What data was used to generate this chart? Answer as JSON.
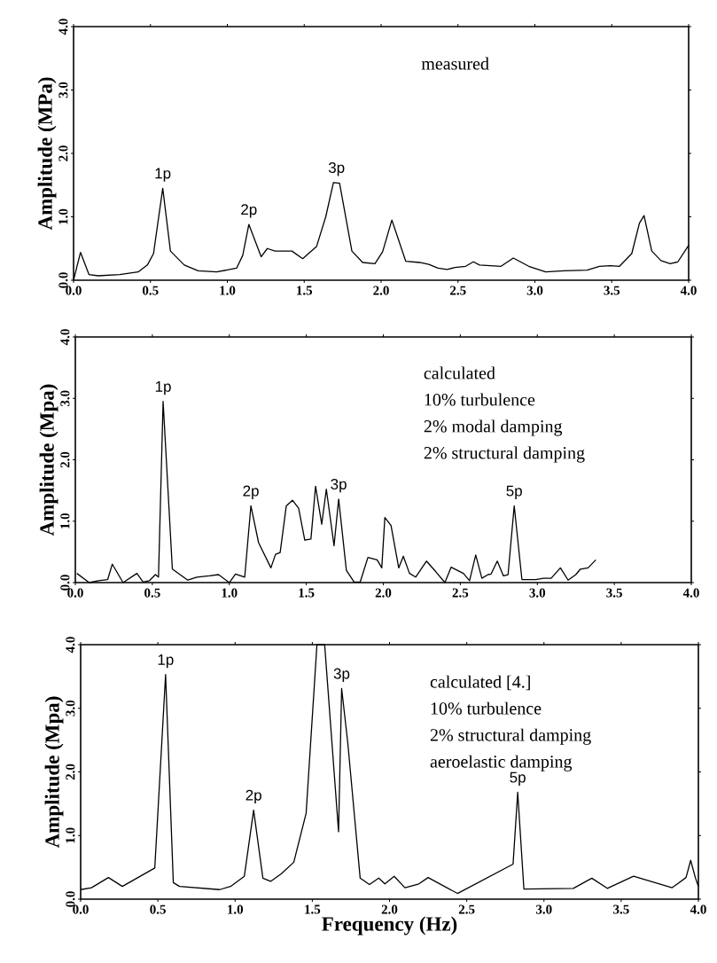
{
  "chart_data": [
    {
      "type": "line",
      "ylabel": "Amplitude (MPa)",
      "color": "#000000",
      "marker": "none",
      "xlim": [
        0,
        4
      ],
      "ylim": [
        0,
        4
      ],
      "xticks": [
        {
          "value": 0,
          "label": "0.0"
        },
        {
          "value": 0.5,
          "label": "0.5"
        },
        {
          "value": 1,
          "label": "1.0"
        },
        {
          "value": 1.5,
          "label": "1.5"
        },
        {
          "value": 2,
          "label": "2.0"
        },
        {
          "value": 2.5,
          "label": "2.5"
        },
        {
          "value": 3,
          "label": "3.0"
        },
        {
          "value": 3.5,
          "label": "3.5"
        },
        {
          "value": 4,
          "label": "4.0"
        }
      ],
      "yticks": [
        {
          "value": 0,
          "label": "0.0"
        },
        {
          "value": 1,
          "label": "1.0"
        },
        {
          "value": 2,
          "label": "2.0"
        },
        {
          "value": 3,
          "label": "3.0"
        },
        {
          "value": 4,
          "label": "4.0"
        }
      ],
      "x": [
        0,
        0.045,
        0.1,
        0.16,
        0.3,
        0.42,
        0.48,
        0.52,
        0.58,
        0.63,
        0.72,
        0.81,
        0.93,
        1.06,
        1.1,
        1.14,
        1.22,
        1.26,
        1.31,
        1.42,
        1.49,
        1.58,
        1.64,
        1.69,
        1.73,
        1.81,
        1.88,
        1.96,
        2.01,
        2.07,
        2.16,
        2.25,
        2.31,
        2.37,
        2.43,
        2.48,
        2.55,
        2.6,
        2.64,
        2.78,
        2.86,
        2.96,
        3.07,
        3.19,
        3.34,
        3.42,
        3.49,
        3.55,
        3.63,
        3.68,
        3.71,
        3.76,
        3.82,
        3.88,
        3.93,
        4.0
      ],
      "values": [
        0,
        0.44,
        0.09,
        0.07,
        0.09,
        0.13,
        0.24,
        0.42,
        1.45,
        0.46,
        0.24,
        0.15,
        0.13,
        0.19,
        0.39,
        0.88,
        0.37,
        0.5,
        0.46,
        0.46,
        0.34,
        0.53,
        1.0,
        1.54,
        1.53,
        0.46,
        0.28,
        0.26,
        0.45,
        0.95,
        0.3,
        0.28,
        0.25,
        0.19,
        0.17,
        0.2,
        0.22,
        0.29,
        0.24,
        0.22,
        0.35,
        0.22,
        0.13,
        0.15,
        0.16,
        0.22,
        0.23,
        0.22,
        0.42,
        0.9,
        1.02,
        0.46,
        0.31,
        0.26,
        0.29,
        0.55
      ],
      "annotations": [
        {
          "text": "1p",
          "x": 0.58,
          "y": 1.45
        },
        {
          "text": "2p",
          "x": 1.14,
          "y": 0.88
        },
        {
          "text": "3p",
          "x": 1.71,
          "y": 1.54
        },
        "measured"
      ]
    },
    {
      "type": "line",
      "ylabel": "Amplitude (Mpa)",
      "color": "#000000",
      "marker": "none",
      "xlim": [
        0,
        4
      ],
      "ylim": [
        0,
        4
      ],
      "xticks": [
        {
          "value": 0,
          "label": "0.0"
        },
        {
          "value": 0.5,
          "label": "0.5"
        },
        {
          "value": 1,
          "label": "1.0"
        },
        {
          "value": 1.5,
          "label": "1.5"
        },
        {
          "value": 2,
          "label": "2.0"
        },
        {
          "value": 2.5,
          "label": "2.5"
        },
        {
          "value": 3,
          "label": "3.0"
        },
        {
          "value": 3.5,
          "label": "3.5"
        },
        {
          "value": 4,
          "label": "4.0"
        }
      ],
      "yticks": [
        {
          "value": 0,
          "label": "0.0"
        },
        {
          "value": 1,
          "label": "1.0"
        },
        {
          "value": 2,
          "label": "2.0"
        },
        {
          "value": 3,
          "label": "3.0"
        },
        {
          "value": 4,
          "label": "4.0"
        }
      ],
      "x": [
        0.01,
        0.09,
        0.15,
        0.21,
        0.24,
        0.31,
        0.4,
        0.44,
        0.48,
        0.52,
        0.54,
        0.57,
        0.63,
        0.73,
        0.79,
        0.87,
        0.93,
        1.0,
        1.04,
        1.1,
        1.14,
        1.19,
        1.27,
        1.3,
        1.33,
        1.37,
        1.41,
        1.45,
        1.49,
        1.53,
        1.56,
        1.6,
        1.63,
        1.68,
        1.71,
        1.76,
        1.81,
        1.85,
        1.9,
        1.96,
        1.99,
        2.01,
        2.05,
        2.1,
        2.13,
        2.17,
        2.21,
        2.28,
        2.34,
        2.4,
        2.44,
        2.52,
        2.56,
        2.6,
        2.64,
        2.68,
        2.7,
        2.74,
        2.78,
        2.81,
        2.85,
        2.9,
        2.99,
        3.04,
        3.09,
        3.15,
        3.2,
        3.25,
        3.28,
        3.33,
        3.38
      ],
      "values": [
        0.15,
        0,
        0.03,
        0.05,
        0.3,
        0,
        0.15,
        0.01,
        0.03,
        0.13,
        0.09,
        2.95,
        0.22,
        0.04,
        0.09,
        0.11,
        0.13,
        0,
        0.14,
        0.09,
        1.25,
        0.65,
        0.24,
        0.46,
        0.49,
        1.25,
        1.34,
        1.21,
        0.69,
        0.71,
        1.57,
        0.95,
        1.52,
        0.6,
        1.36,
        0.2,
        0.01,
        0.01,
        0.41,
        0.37,
        0.24,
        1.06,
        0.93,
        0.24,
        0.43,
        0.15,
        0.09,
        0.35,
        0.18,
        0,
        0.25,
        0.15,
        0.03,
        0.45,
        0.07,
        0.13,
        0.14,
        0.35,
        0.11,
        0.13,
        1.25,
        0.05,
        0.05,
        0.07,
        0.07,
        0.24,
        0.04,
        0.13,
        0.22,
        0.24,
        0.37
      ],
      "annotations": [
        {
          "text": "1p",
          "x": 0.57,
          "y": 2.95
        },
        {
          "text": "2p",
          "x": 1.14,
          "y": 1.25
        },
        {
          "text": "3p",
          "x": 1.71,
          "y": 1.36
        },
        {
          "text": "5p",
          "x": 2.85,
          "y": 1.25
        },
        "calculated",
        "10% turbulence",
        "2% modal damping",
        "2% structural damping"
      ]
    },
    {
      "type": "line",
      "ylabel": "Amplitude (Mpa)",
      "xlabel": "Frequency (Hz)",
      "color": "#000000",
      "marker": "none",
      "xlim": [
        0,
        4
      ],
      "ylim": [
        0,
        4
      ],
      "xticks": [
        {
          "value": 0,
          "label": "0.0"
        },
        {
          "value": 0.5,
          "label": "0.5"
        },
        {
          "value": 1,
          "label": "1.0"
        },
        {
          "value": 1.5,
          "label": "1.5"
        },
        {
          "value": 2,
          "label": "2.0"
        },
        {
          "value": 2.5,
          "label": "2.5"
        },
        {
          "value": 3,
          "label": "3.0"
        },
        {
          "value": 3.5,
          "label": "3.5"
        },
        {
          "value": 4,
          "label": "4.0"
        }
      ],
      "yticks": [
        {
          "value": 0,
          "label": "0.0"
        },
        {
          "value": 1,
          "label": "1.0"
        },
        {
          "value": 2,
          "label": "2.0"
        },
        {
          "value": 3,
          "label": "3.0"
        },
        {
          "value": 4,
          "label": "4.0"
        }
      ],
      "x": [
        0,
        0.07,
        0.18,
        0.27,
        0.48,
        0.55,
        0.6,
        0.64,
        0.9,
        0.97,
        1.06,
        1.12,
        1.18,
        1.23,
        1.3,
        1.38,
        1.46,
        1.53,
        1.58,
        1.67,
        1.69,
        1.73,
        1.81,
        1.87,
        1.93,
        1.97,
        2.03,
        2.1,
        2.19,
        2.25,
        2.44,
        2.8,
        2.83,
        2.87,
        3.19,
        3.31,
        3.41,
        3.58,
        3.83,
        3.92,
        3.95,
        3.98,
        4.0
      ],
      "values": [
        0.15,
        0.18,
        0.34,
        0.2,
        0.49,
        3.53,
        0.26,
        0.2,
        0.15,
        0.2,
        0.36,
        1.4,
        0.33,
        0.28,
        0.4,
        0.58,
        1.35,
        4.0,
        4.0,
        1.06,
        3.31,
        2.45,
        0.33,
        0.23,
        0.33,
        0.24,
        0.36,
        0.18,
        0.24,
        0.34,
        0.09,
        0.55,
        1.68,
        0.16,
        0.17,
        0.33,
        0.17,
        0.36,
        0.18,
        0.34,
        0.61,
        0.34,
        0.2
      ],
      "annotations": [
        {
          "text": "1p",
          "x": 0.55,
          "y": 3.53
        },
        {
          "text": "2p",
          "x": 1.12,
          "y": 1.4
        },
        {
          "text": "3p",
          "x": 1.69,
          "y": 3.31
        },
        {
          "text": "5p",
          "x": 2.83,
          "y": 1.68
        },
        "calculated [4.]",
        "10% turbulence",
        "2% structural damping",
        "aeroelastic damping"
      ]
    }
  ]
}
